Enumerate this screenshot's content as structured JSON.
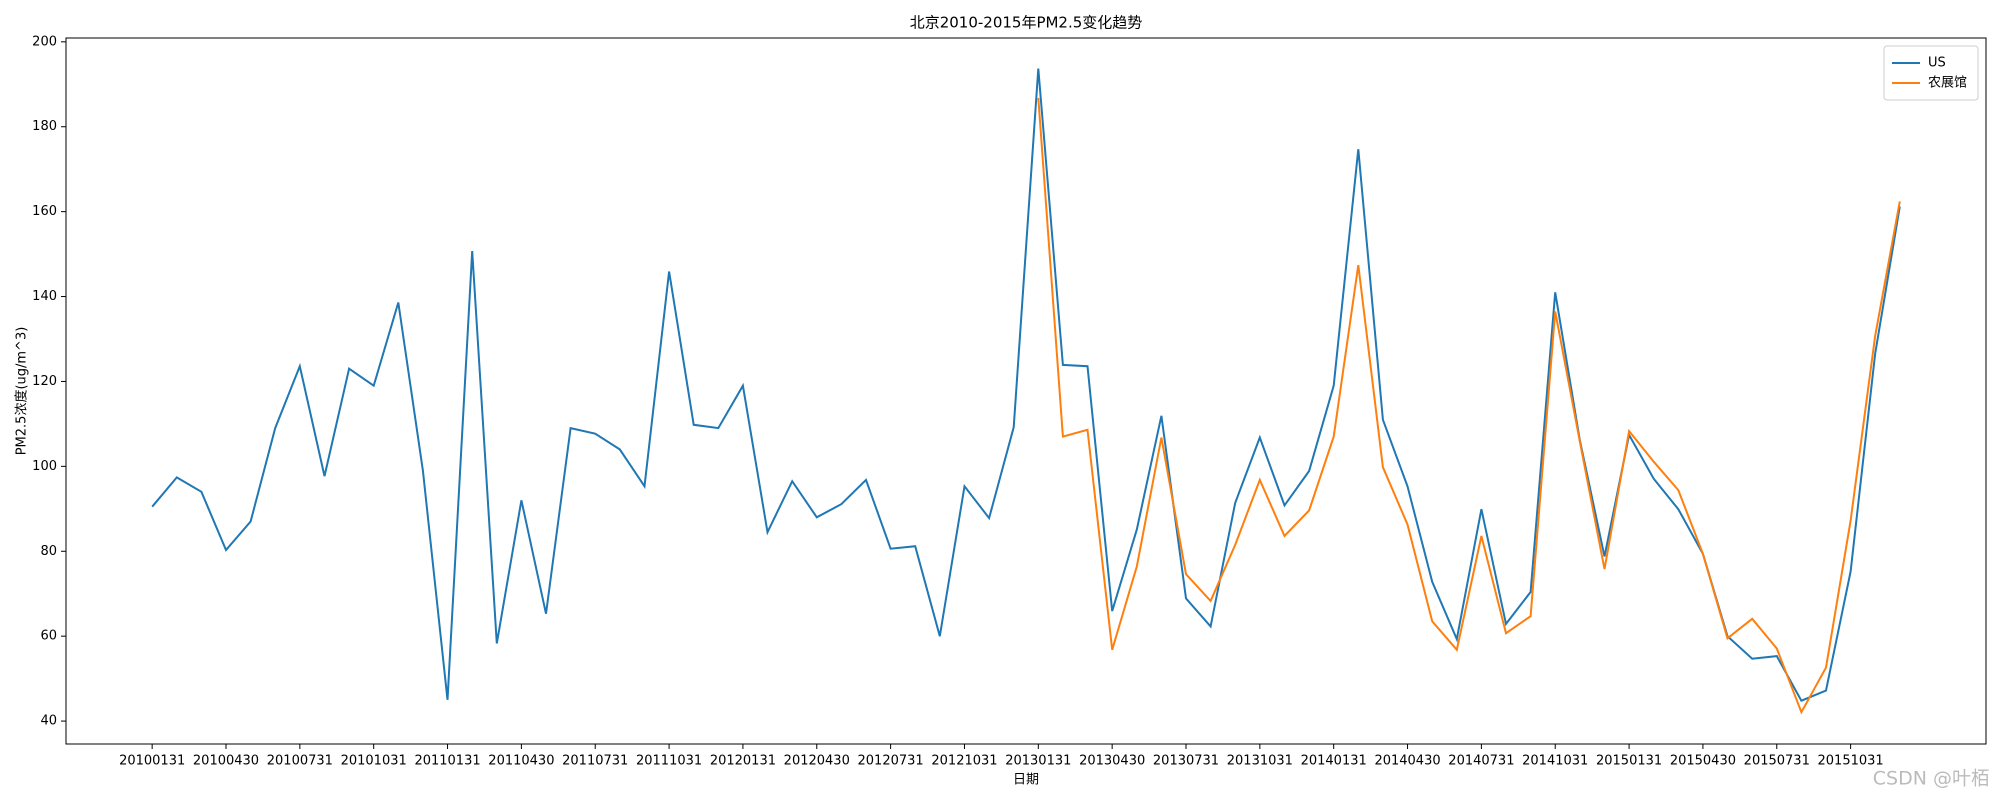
{
  "chart_data": {
    "type": "line",
    "title": "北京2010-2015年PM2.5变化趋势",
    "x_label": "日期",
    "y_label": "PM2.5浓度(ug/m^3)",
    "categories": [
      "20100131",
      null,
      null,
      "20100430",
      null,
      null,
      "20100731",
      null,
      null,
      "20101031",
      null,
      null,
      "20110131",
      null,
      null,
      "20110430",
      null,
      null,
      "20110731",
      null,
      null,
      "20111031",
      null,
      null,
      "20120131",
      null,
      null,
      "20120430",
      null,
      null,
      "20120731",
      null,
      null,
      "20121031",
      null,
      null,
      "20130131",
      null,
      null,
      "20130430",
      null,
      null,
      "20130731",
      null,
      null,
      "20131031",
      null,
      null,
      "20140131",
      null,
      null,
      "20140430",
      null,
      null,
      "20140731",
      null,
      null,
      "20141031",
      null,
      null,
      "20150131",
      null,
      null,
      "20150430",
      null,
      null,
      "20150731",
      null,
      null,
      "20151031",
      null,
      null
    ],
    "series": [
      {
        "name": "US",
        "color": "#1f77b4",
        "values": [
          90.5,
          97.4,
          94,
          80.3,
          87,
          109,
          123.6,
          97.7,
          123,
          119,
          138.6,
          99,
          45,
          150.7,
          58.3,
          92,
          65.3,
          109,
          107.7,
          104,
          95.3,
          145.9,
          109.8,
          109,
          119,
          84.5,
          96.5,
          88,
          91.1,
          96.8,
          80.6,
          81.2,
          60,
          95.3,
          87.8,
          109.2,
          193.7,
          123.9,
          123.6,
          65.9,
          85.1,
          111.9,
          68.9,
          62.3,
          91.4,
          106.8,
          90.8,
          98.9,
          119,
          174.7,
          111,
          95.3,
          72.8,
          59.3,
          89.9,
          62.9,
          70.4,
          141,
          106.2,
          78.8,
          107.4,
          97.1,
          89.9,
          79.4,
          60,
          54.7,
          55.3,
          44.8,
          47.2,
          75.2,
          126.6,
          161.2
        ]
      },
      {
        "name": "农展馆",
        "color": "#ff7f0e",
        "values": [
          null,
          null,
          null,
          null,
          null,
          null,
          null,
          null,
          null,
          null,
          null,
          null,
          null,
          null,
          null,
          null,
          null,
          null,
          null,
          null,
          null,
          null,
          null,
          null,
          null,
          null,
          null,
          null,
          null,
          null,
          null,
          null,
          null,
          null,
          null,
          null,
          186.8,
          107,
          108.6,
          56.8,
          76.4,
          106.8,
          74.6,
          68.3,
          81.5,
          96.8,
          83.6,
          89.6,
          107,
          147.4,
          99.8,
          86.3,
          63.5,
          56.8,
          83.6,
          60.7,
          64.7,
          136.5,
          105.9,
          75.8,
          108.3,
          101.1,
          94.4,
          79.4,
          59.5,
          64.1,
          57.1,
          42.1,
          52.6,
          87.2,
          130.8,
          162.4
        ]
      }
    ],
    "ylim": [
      34.6,
      200.9
    ],
    "yticks": [
      40,
      60,
      80,
      100,
      120,
      140,
      160,
      180,
      200
    ],
    "legend": "upper right",
    "watermark": "CSDN @叶栢"
  }
}
